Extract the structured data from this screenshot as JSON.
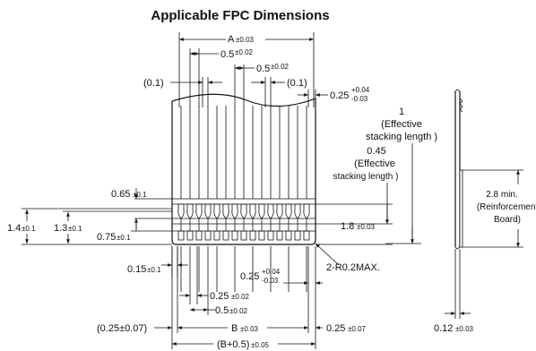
{
  "title": "Applicable FPC Dimensions",
  "dims": {
    "a": {
      "main": "A",
      "tol": "±0.03"
    },
    "pitch_top": {
      "main": "0.5",
      "tol": "±0.02"
    },
    "pitch_top2": {
      "main": "0.5",
      "tol": "±0.02"
    },
    "ref_left": "(0.1)",
    "ref_right": "(0.1)",
    "thick_tol": {
      "main": "0.25",
      "up": "+0.04",
      "down": "-0.03"
    },
    "eff_1": {
      "value": "1",
      "l1": "(Effective",
      "l2": "stacking length )"
    },
    "eff_045": {
      "value": "0.45",
      "l1": "(Effective",
      "l2": "stacking length )"
    },
    "d065": {
      "main": "0.65",
      "tol": "±0.1"
    },
    "d14": {
      "main": "1.4",
      "tol": "±0.1"
    },
    "d13": {
      "main": "1.3",
      "tol": "±0.1"
    },
    "d075": {
      "main": "0.75",
      "tol": "±0.1"
    },
    "d18": {
      "main": "1.8",
      "tol": "±0.03"
    },
    "d015": {
      "main": "0.15",
      "tol": "±0.1"
    },
    "radius": "2-R0.2MAX.",
    "thick_tol2": {
      "main": "0.25",
      "up": "+0.04",
      "down": "-0.03"
    },
    "w025": {
      "main": "0.25",
      "tol": "±0.02"
    },
    "p05": {
      "main": "0.5",
      "tol": "±0.02"
    },
    "b_left": "(0.25±0.07)",
    "b": {
      "main": "B",
      "tol": "±0.03"
    },
    "b_right": {
      "main": "0.25",
      "tol": "±0.07"
    },
    "b05": {
      "main": "(B+0.5)",
      "tol": "±0.05"
    },
    "reinf": {
      "l1": "2.8 min.",
      "l2": "(Reinforcement",
      "l3": "Board)"
    },
    "t012": {
      "main": "0.12",
      "tol": "±0.03"
    }
  }
}
